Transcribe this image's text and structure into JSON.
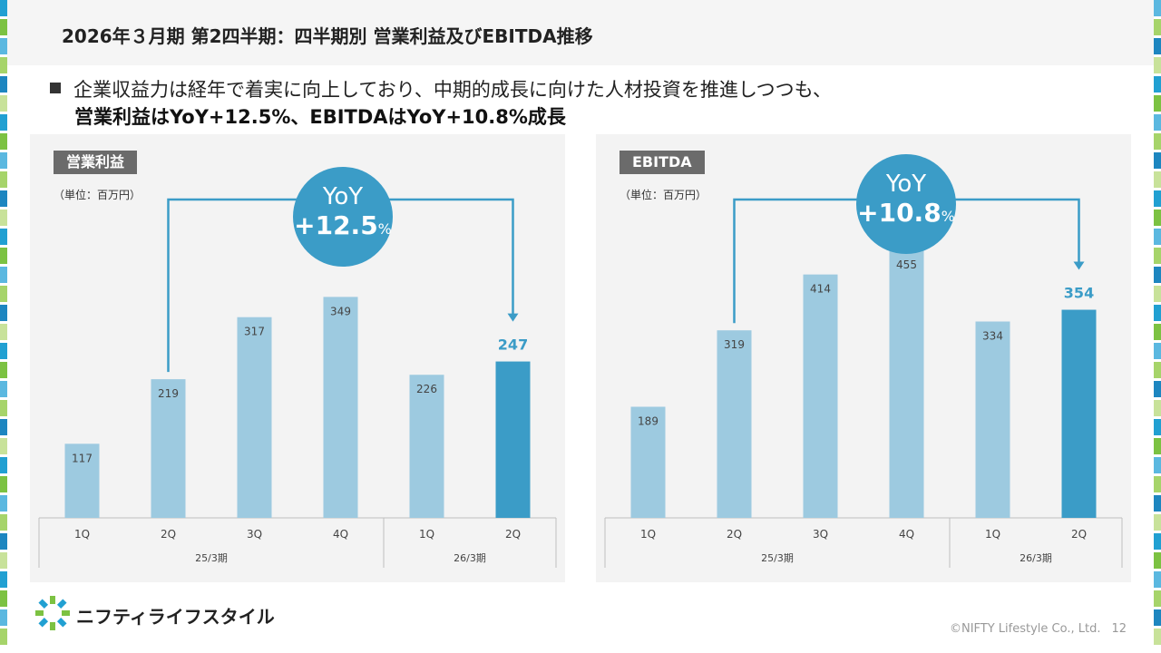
{
  "header": {
    "title": "2026年３月期 第2四半期：四半期別 営業利益及びEBITDA推移"
  },
  "summary": {
    "line1": "企業収益力は経年で着実に向上しており、中期的成長に向けた人材投資を推進しつつも、",
    "line2": "営業利益はYoY+12.5%、EBITDAはYoY+10.8%成長"
  },
  "colors": {
    "bar_light": "#9dcae0",
    "bar_highlight": "#3b9cc7",
    "accent": "#3b9cc7"
  },
  "chart_data": [
    {
      "type": "bar",
      "title": "営業利益",
      "unit": "（単位：百万円）",
      "categories": [
        "1Q",
        "2Q",
        "3Q",
        "4Q",
        "1Q",
        "2Q"
      ],
      "groups": [
        {
          "label": "25/3期",
          "count": 4
        },
        {
          "label": "26/3期",
          "count": 2
        }
      ],
      "values": [
        117,
        219,
        317,
        349,
        226,
        247
      ],
      "highlight_index": 5,
      "ylim": [
        0,
        520
      ],
      "yoy": {
        "label": "YoY",
        "value": "+12.5",
        "suffix": "%",
        "from_index": 1,
        "to_index": 5
      }
    },
    {
      "type": "bar",
      "title": "EBITDA",
      "unit": "（単位：百万円）",
      "categories": [
        "1Q",
        "2Q",
        "3Q",
        "4Q",
        "1Q",
        "2Q"
      ],
      "groups": [
        {
          "label": "25/3期",
          "count": 4
        },
        {
          "label": "26/3期",
          "count": 2
        }
      ],
      "values": [
        189,
        319,
        414,
        455,
        334,
        354
      ],
      "highlight_index": 5,
      "ylim": [
        0,
        560
      ],
      "yoy": {
        "label": "YoY",
        "value": "+10.8",
        "suffix": "%",
        "from_index": 1,
        "to_index": 5
      }
    }
  ],
  "footer": {
    "brand": "ニフティライフスタイル",
    "copyright": "©NIFTY Lifestyle Co., Ltd.",
    "page": "12"
  }
}
